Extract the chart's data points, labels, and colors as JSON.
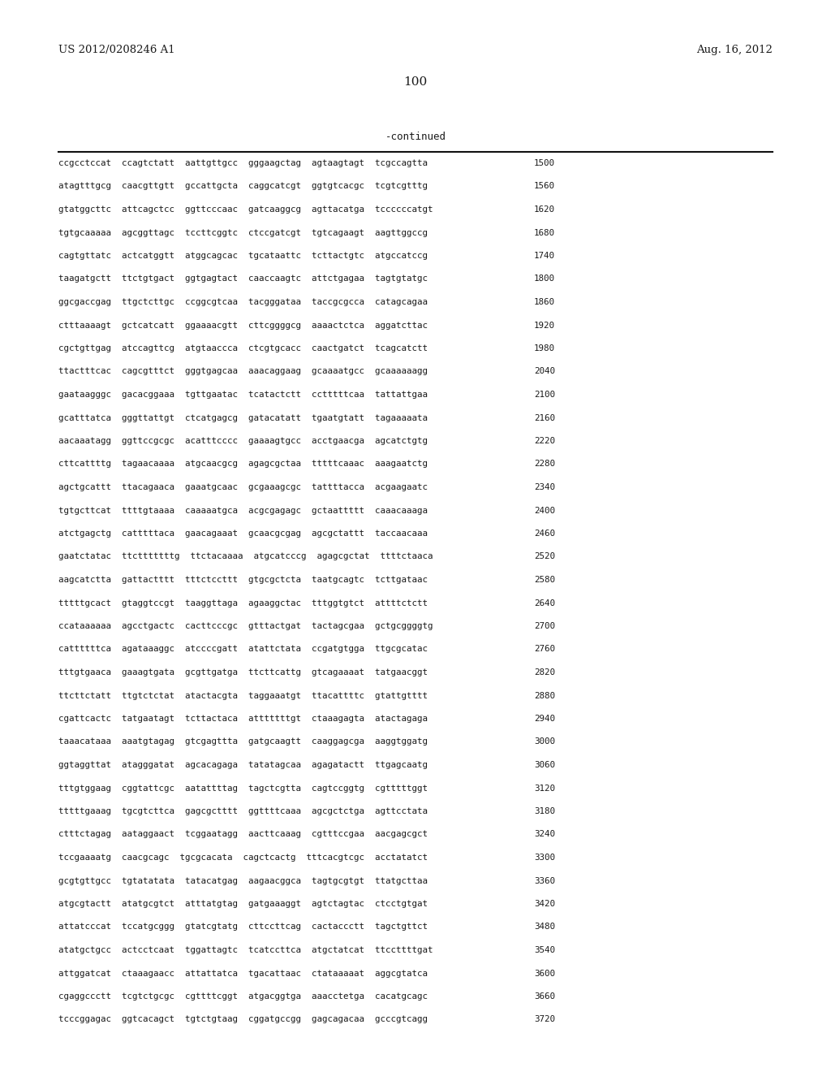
{
  "header_left": "US 2012/0208246 A1",
  "header_right": "Aug. 16, 2012",
  "page_number": "100",
  "continued_label": "-continued",
  "background_color": "#ffffff",
  "text_color": "#1a1a1a",
  "font_size_header": 9.5,
  "font_size_body": 7.8,
  "font_size_page": 11,
  "font_size_continued": 9,
  "sequence_lines": [
    [
      "ccgcctccat  ccagtctatt  aattgttgcc  gggaagctag  agtaagtagt  tcgccagtta",
      "1500"
    ],
    [
      "atagtttgcg  caacgttgtt  gccattgcta  caggcatcgt  ggtgtcacgc  tcgtcgtttg",
      "1560"
    ],
    [
      "gtatggcttc  attcagctcc  ggttcccaac  gatcaaggcg  agttacatga  tccccccatgt",
      "1620"
    ],
    [
      "tgtgcaaaaa  agcggttagc  tccttcggtc  ctccgatcgt  tgtcagaagt  aagttggccg",
      "1680"
    ],
    [
      "cagtgttatc  actcatggtt  atggcagcac  tgcataattc  tcttactgtc  atgccatccg",
      "1740"
    ],
    [
      "taagatgctt  ttctgtgact  ggtgagtact  caaccaagtc  attctgagaa  tagtgtatgc",
      "1800"
    ],
    [
      "ggcgaccgag  ttgctcttgc  ccggcgtcaa  tacgggataa  taccgcgcca  catagcagaa",
      "1860"
    ],
    [
      "ctttaaaagt  gctcatcatt  ggaaaacgtt  cttcggggcg  aaaactctca  aggatcttac",
      "1920"
    ],
    [
      "cgctgttgag  atccagttcg  atgtaaccca  ctcgtgcacc  caactgatct  tcagcatctt",
      "1980"
    ],
    [
      "ttactttcac  cagcgtttct  gggtgagcaa  aaacaggaag  gcaaaatgcc  gcaaaaaagg",
      "2040"
    ],
    [
      "gaataagggc  gacacggaaa  tgttgaatac  tcatactctt  cctttttcaa  tattattgaa",
      "2100"
    ],
    [
      "gcatttatca  gggttattgt  ctcatgagcg  gatacatatt  tgaatgtatt  tagaaaaata",
      "2160"
    ],
    [
      "aacaaatagg  ggttccgcgc  acatttcccc  gaaaagtgcc  acctgaacga  agcatctgtg",
      "2220"
    ],
    [
      "cttcattttg  tagaacaaaa  atgcaacgcg  agagcgctaa  tttttcaaac  aaagaatctg",
      "2280"
    ],
    [
      "agctgcattt  ttacagaaca  gaaatgcaac  gcgaaagcgc  tattttacca  acgaagaatc",
      "2340"
    ],
    [
      "tgtgcttcat  ttttgtaaaa  caaaaatgca  acgcgagagc  gctaattttt  caaacaaaga",
      "2400"
    ],
    [
      "atctgagctg  catttttaca  gaacagaaat  gcaacgcgag  agcgctattt  taccaacaaa",
      "2460"
    ],
    [
      "gaatctatac  ttctttttttg  ttctacaaaa  atgcatcccg  agagcgctat  ttttctaaca",
      "2520"
    ],
    [
      "aagcatctta  gattactttt  tttctccttt  gtgcgctcta  taatgcagtc  tcttgataac",
      "2580"
    ],
    [
      "tttttgcact  gtaggtccgt  taaggttaga  agaaggctac  tttggtgtct  attttctctt",
      "2640"
    ],
    [
      "ccataaaaaa  agcctgactc  cacttcccgc  gtttactgat  tactagcgaa  gctgcggggtg",
      "2700"
    ],
    [
      "cattttttca  agataaaggc  atccccgatt  atattctata  ccgatgtgga  ttgcgcatac",
      "2760"
    ],
    [
      "tttgtgaaca  gaaagtgata  gcgttgatga  ttcttcattg  gtcagaaaat  tatgaacggt",
      "2820"
    ],
    [
      "ttcttctatt  ttgtctctat  atactacgta  taggaaatgt  ttacattttc  gtattgtttt",
      "2880"
    ],
    [
      "cgattcactc  tatgaatagt  tcttactaca  atttttttgt  ctaaagagta  atactagaga",
      "2940"
    ],
    [
      "taaacataaa  aaatgtagag  gtcgagttta  gatgcaagtt  caaggagcga  aaggtggatg",
      "3000"
    ],
    [
      "ggtaggttat  atagggatat  agcacagaga  tatatagcaa  agagatactt  ttgagcaatg",
      "3060"
    ],
    [
      "tttgtggaag  cggtattcgc  aatattttag  tagctcgtta  cagtccggtg  cgtttttggt",
      "3120"
    ],
    [
      "tttttgaaag  tgcgtcttca  gagcgctttt  ggttttcaaa  agcgctctga  agttcctata",
      "3180"
    ],
    [
      "ctttctagag  aataggaact  tcggaatagg  aacttcaaag  cgtttccgaa  aacgagcgct",
      "3240"
    ],
    [
      "tccgaaaatg  caacgcagc  tgcgcacata  cagctcactg  tttcacgtcgc  acctatatct",
      "3300"
    ],
    [
      "gcgtgttgcc  tgtatatata  tatacatgag  aagaacggca  tagtgcgtgt  ttatgcttaa",
      "3360"
    ],
    [
      "atgcgtactt  atatgcgtct  atttatgtag  gatgaaaggt  agtctagtac  ctcctgtgat",
      "3420"
    ],
    [
      "attatcccat  tccatgcggg  gtatcgtatg  cttccttcag  cactaccctt  tagctgttct",
      "3480"
    ],
    [
      "atatgctgcc  actcctcaat  tggattagtc  tcatccttca  atgctatcat  ttccttttgat",
      "3540"
    ],
    [
      "attggatcat  ctaaagaacc  attattatca  tgacattaac  ctataaaaat  aggcgtatca",
      "3600"
    ],
    [
      "cgaggccctt  tcgtctgcgc  cgttttcggt  atgacggtga  aaacctetga  cacatgcagc",
      "3660"
    ],
    [
      "tcccggagac  ggtcacagct  tgtctgtaag  cggatgccgg  gagcagacaa  gcccgtcagg",
      "3720"
    ]
  ]
}
